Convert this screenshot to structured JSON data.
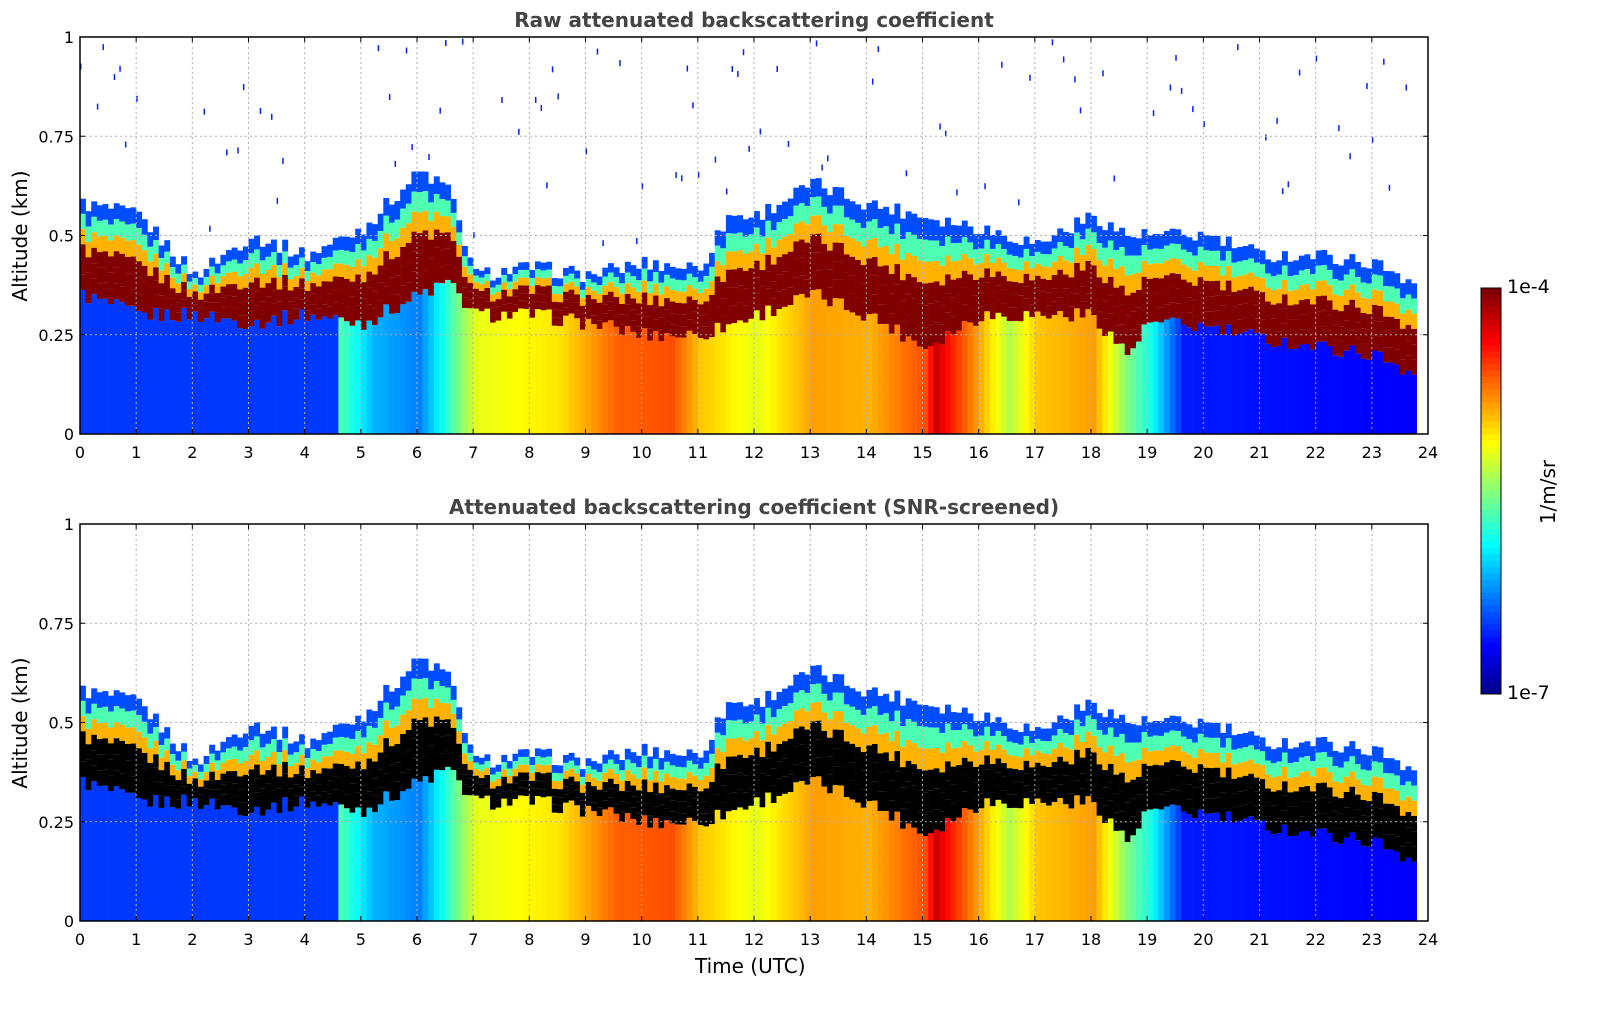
{
  "chart_data": [
    {
      "type": "heatmap",
      "title": "Raw attenuated backscattering coefficient",
      "xlabel": "",
      "ylabel": "Altitude (km)",
      "xlim": [
        0,
        24
      ],
      "ylim": [
        0,
        1
      ],
      "xticks": [
        "0",
        "1",
        "2",
        "3",
        "4",
        "5",
        "6",
        "7",
        "8",
        "9",
        "10",
        "11",
        "12",
        "13",
        "14",
        "15",
        "16",
        "17",
        "18",
        "19",
        "20",
        "21",
        "22",
        "23",
        "24"
      ],
      "yticks": [
        "0",
        "0.25",
        "0.5",
        "0.75",
        "1"
      ],
      "grid": true,
      "layer_top_km": [
        [
          0,
          0.58
        ],
        [
          1,
          0.55
        ],
        [
          2,
          0.4
        ],
        [
          3,
          0.5
        ],
        [
          4,
          0.45
        ],
        [
          5,
          0.52
        ],
        [
          6,
          0.66
        ],
        [
          6.5,
          0.62
        ],
        [
          7,
          0.4
        ],
        [
          8,
          0.42
        ],
        [
          9,
          0.4
        ],
        [
          10,
          0.43
        ],
        [
          11,
          0.42
        ],
        [
          11.5,
          0.55
        ],
        [
          12,
          0.55
        ],
        [
          13,
          0.63
        ],
        [
          14,
          0.58
        ],
        [
          15,
          0.55
        ],
        [
          16,
          0.52
        ],
        [
          17,
          0.48
        ],
        [
          18,
          0.55
        ],
        [
          18.6,
          0.5
        ],
        [
          19,
          0.5
        ],
        [
          20,
          0.5
        ],
        [
          21,
          0.45
        ],
        [
          22,
          0.45
        ],
        [
          23,
          0.43
        ],
        [
          23.8,
          0.38
        ]
      ],
      "layer_bottom_km": [
        [
          0,
          0.35
        ],
        [
          1,
          0.3
        ],
        [
          2,
          0.3
        ],
        [
          3,
          0.28
        ],
        [
          4,
          0.3
        ],
        [
          5,
          0.28
        ],
        [
          6,
          0.35
        ],
        [
          6.5,
          0.38
        ],
        [
          7,
          0.3
        ],
        [
          8,
          0.3
        ],
        [
          9,
          0.28
        ],
        [
          10,
          0.25
        ],
        [
          11,
          0.25
        ],
        [
          12,
          0.3
        ],
        [
          13,
          0.35
        ],
        [
          14,
          0.3
        ],
        [
          15,
          0.22
        ],
        [
          16,
          0.3
        ],
        [
          17,
          0.3
        ],
        [
          18,
          0.3
        ],
        [
          18.6,
          0.2
        ],
        [
          19,
          0.28
        ],
        [
          20,
          0.27
        ],
        [
          21,
          0.24
        ],
        [
          22,
          0.22
        ],
        [
          23,
          0.2
        ],
        [
          23.8,
          0.15
        ]
      ],
      "below_layer_intensity": [
        [
          0,
          0.18
        ],
        [
          4.5,
          0.18
        ],
        [
          4.6,
          0.45
        ],
        [
          5.2,
          0.3
        ],
        [
          6.0,
          0.25
        ],
        [
          7.0,
          0.6
        ],
        [
          8.5,
          0.65
        ],
        [
          9.5,
          0.78
        ],
        [
          10.5,
          0.8
        ],
        [
          11,
          0.68
        ],
        [
          12,
          0.6
        ],
        [
          13,
          0.72
        ],
        [
          14,
          0.7
        ],
        [
          15,
          0.8
        ],
        [
          15.2,
          0.92
        ],
        [
          16,
          0.7
        ],
        [
          16.5,
          0.55
        ],
        [
          17,
          0.68
        ],
        [
          18,
          0.72
        ],
        [
          18.6,
          0.5
        ],
        [
          19,
          0.4
        ],
        [
          19.6,
          0.15
        ],
        [
          23.8,
          0.12
        ]
      ],
      "layer_peak_intensity": 1.0
    },
    {
      "type": "heatmap",
      "title": "Attenuated backscattering coefficient (SNR-screened)",
      "xlabel": "Time (UTC)",
      "ylabel": "Altitude (km)",
      "xlim": [
        0,
        24
      ],
      "ylim": [
        0,
        1
      ],
      "xticks": [
        "0",
        "1",
        "2",
        "3",
        "4",
        "5",
        "6",
        "7",
        "8",
        "9",
        "10",
        "11",
        "12",
        "13",
        "14",
        "15",
        "16",
        "17",
        "18",
        "19",
        "20",
        "21",
        "22",
        "23",
        "24"
      ],
      "yticks": [
        "0",
        "0.25",
        "0.5",
        "0.75",
        "1"
      ],
      "grid": true,
      "saturated_color": "#000000"
    }
  ],
  "colorbar": {
    "label": "1/m/sr",
    "max_label": "1e-4",
    "min_label": "1e-7",
    "colormap": "jet"
  }
}
